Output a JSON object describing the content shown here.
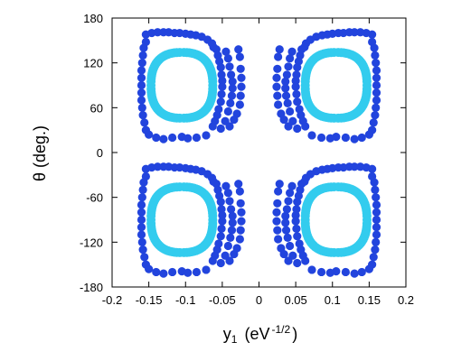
{
  "chart_data": {
    "type": "scatter",
    "xlabel": "y",
    "xlabel_sub": "1",
    "xlabel_unit_open": "(eV",
    "xlabel_unit_exp": "-1/2",
    "xlabel_unit_close": ")",
    "ylabel": "θ (deg.)",
    "xlim": [
      -0.2,
      0.2
    ],
    "ylim": [
      -180,
      180
    ],
    "xticks": [
      -0.2,
      -0.15,
      -0.1,
      -0.05,
      0,
      0.05,
      0.1,
      0.15,
      0.2
    ],
    "xtick_labels": [
      "-0.2",
      "-0.15",
      "-0.1",
      "-0.05",
      "0",
      "0.05",
      "0.1",
      "0.15",
      "0.2"
    ],
    "yticks": [
      -180,
      -120,
      -60,
      0,
      60,
      120,
      180
    ],
    "ytick_labels": [
      "-180",
      "-120",
      "-60",
      "0",
      "60",
      "120",
      "180"
    ],
    "grid": false,
    "legend": false,
    "series": [
      {
        "color": "#2244dd",
        "points": [
          [
            -0.154,
            158
          ],
          [
            -0.146,
            160
          ],
          [
            -0.138,
            161
          ],
          [
            -0.13,
            161
          ],
          [
            -0.123,
            161
          ],
          [
            -0.115,
            160
          ],
          [
            -0.108,
            160
          ],
          [
            -0.1,
            159
          ],
          [
            -0.093,
            158
          ],
          [
            -0.086,
            157
          ],
          [
            -0.078,
            155
          ],
          [
            -0.07,
            151
          ],
          [
            -0.064,
            146
          ],
          [
            -0.154,
            148
          ],
          [
            -0.157,
            140
          ],
          [
            -0.158,
            130
          ],
          [
            -0.159,
            120
          ],
          [
            -0.16,
            110
          ],
          [
            -0.16,
            100
          ],
          [
            -0.16,
            90
          ],
          [
            -0.16,
            80
          ],
          [
            -0.16,
            70
          ],
          [
            -0.159,
            60
          ],
          [
            -0.158,
            50
          ],
          [
            -0.156,
            40
          ],
          [
            -0.154,
            30
          ],
          [
            -0.15,
            24
          ],
          [
            -0.14,
            20
          ],
          [
            -0.13,
            18
          ],
          [
            -0.118,
            20
          ],
          [
            -0.105,
            21
          ],
          [
            -0.097,
            19
          ],
          [
            -0.085,
            20
          ],
          [
            -0.072,
            23
          ],
          [
            -0.062,
            141
          ],
          [
            -0.058,
            138
          ],
          [
            -0.056,
            130
          ],
          [
            -0.054,
            122
          ],
          [
            -0.052,
            114
          ],
          [
            -0.051,
            104
          ],
          [
            -0.05,
            96
          ],
          [
            -0.05,
            88
          ],
          [
            -0.051,
            78
          ],
          [
            -0.052,
            68
          ],
          [
            -0.055,
            58
          ],
          [
            -0.057,
            50
          ],
          [
            -0.06,
            42
          ],
          [
            -0.063,
            35
          ],
          [
            -0.045,
            135
          ],
          [
            -0.042,
            126
          ],
          [
            -0.04,
            115
          ],
          [
            -0.038,
            104
          ],
          [
            -0.036,
            95
          ],
          [
            -0.036,
            86
          ],
          [
            -0.037,
            76
          ],
          [
            -0.039,
            66
          ],
          [
            -0.042,
            55
          ],
          [
            -0.046,
            42
          ],
          [
            -0.052,
            32
          ],
          [
            -0.028,
            138
          ],
          [
            -0.026,
            128
          ],
          [
            -0.025,
            112
          ],
          [
            -0.024,
            100
          ],
          [
            -0.024,
            88
          ],
          [
            -0.025,
            76
          ],
          [
            -0.026,
            64
          ],
          [
            -0.03,
            52
          ],
          [
            -0.034,
            44
          ],
          [
            -0.04,
            35
          ],
          [
            0.154,
            158
          ],
          [
            0.146,
            160
          ],
          [
            0.138,
            161
          ],
          [
            0.13,
            161
          ],
          [
            0.123,
            161
          ],
          [
            0.115,
            160
          ],
          [
            0.108,
            160
          ],
          [
            0.1,
            159
          ],
          [
            0.093,
            158
          ],
          [
            0.086,
            157
          ],
          [
            0.078,
            155
          ],
          [
            0.07,
            151
          ],
          [
            0.064,
            146
          ],
          [
            0.154,
            148
          ],
          [
            0.157,
            140
          ],
          [
            0.158,
            130
          ],
          [
            0.159,
            120
          ],
          [
            0.16,
            110
          ],
          [
            0.16,
            100
          ],
          [
            0.16,
            90
          ],
          [
            0.16,
            80
          ],
          [
            0.16,
            70
          ],
          [
            0.159,
            60
          ],
          [
            0.158,
            50
          ],
          [
            0.156,
            40
          ],
          [
            0.154,
            30
          ],
          [
            0.15,
            24
          ],
          [
            0.14,
            20
          ],
          [
            0.13,
            18
          ],
          [
            0.118,
            20
          ],
          [
            0.105,
            21
          ],
          [
            0.097,
            19
          ],
          [
            0.085,
            20
          ],
          [
            0.072,
            23
          ],
          [
            0.062,
            141
          ],
          [
            0.058,
            138
          ],
          [
            0.056,
            130
          ],
          [
            0.054,
            122
          ],
          [
            0.052,
            114
          ],
          [
            0.051,
            104
          ],
          [
            0.05,
            96
          ],
          [
            0.05,
            88
          ],
          [
            0.051,
            78
          ],
          [
            0.052,
            68
          ],
          [
            0.055,
            58
          ],
          [
            0.057,
            50
          ],
          [
            0.06,
            42
          ],
          [
            0.063,
            35
          ],
          [
            0.045,
            135
          ],
          [
            0.042,
            126
          ],
          [
            0.04,
            115
          ],
          [
            0.038,
            104
          ],
          [
            0.036,
            95
          ],
          [
            0.036,
            86
          ],
          [
            0.037,
            76
          ],
          [
            0.039,
            66
          ],
          [
            0.042,
            55
          ],
          [
            0.046,
            42
          ],
          [
            0.052,
            32
          ],
          [
            0.028,
            138
          ],
          [
            0.026,
            128
          ],
          [
            0.025,
            112
          ],
          [
            0.024,
            100
          ],
          [
            0.024,
            88
          ],
          [
            0.025,
            76
          ],
          [
            0.026,
            64
          ],
          [
            0.03,
            52
          ],
          [
            0.034,
            44
          ],
          [
            0.04,
            35
          ],
          [
            -0.154,
            -22
          ],
          [
            -0.146,
            -20
          ],
          [
            -0.138,
            -19
          ],
          [
            -0.13,
            -19
          ],
          [
            -0.123,
            -19
          ],
          [
            -0.115,
            -20
          ],
          [
            -0.108,
            -20
          ],
          [
            -0.1,
            -21
          ],
          [
            -0.093,
            -22
          ],
          [
            -0.086,
            -23
          ],
          [
            -0.078,
            -25
          ],
          [
            -0.07,
            -29
          ],
          [
            -0.064,
            -34
          ],
          [
            -0.154,
            -32
          ],
          [
            -0.157,
            -40
          ],
          [
            -0.158,
            -50
          ],
          [
            -0.159,
            -60
          ],
          [
            -0.16,
            -70
          ],
          [
            -0.16,
            -80
          ],
          [
            -0.16,
            -90
          ],
          [
            -0.16,
            -100
          ],
          [
            -0.16,
            -110
          ],
          [
            -0.159,
            -120
          ],
          [
            -0.158,
            -130
          ],
          [
            -0.156,
            -140
          ],
          [
            -0.154,
            -150
          ],
          [
            -0.15,
            -156
          ],
          [
            -0.14,
            -160
          ],
          [
            -0.13,
            -162
          ],
          [
            -0.118,
            -160
          ],
          [
            -0.105,
            -159
          ],
          [
            -0.097,
            -161
          ],
          [
            -0.085,
            -160
          ],
          [
            -0.072,
            -157
          ],
          [
            -0.062,
            -39
          ],
          [
            -0.058,
            -42
          ],
          [
            -0.056,
            -50
          ],
          [
            -0.054,
            -58
          ],
          [
            -0.052,
            -66
          ],
          [
            -0.051,
            -76
          ],
          [
            -0.05,
            -84
          ],
          [
            -0.05,
            -92
          ],
          [
            -0.051,
            -102
          ],
          [
            -0.052,
            -112
          ],
          [
            -0.055,
            -122
          ],
          [
            -0.057,
            -130
          ],
          [
            -0.06,
            -138
          ],
          [
            -0.063,
            -145
          ],
          [
            -0.045,
            -45
          ],
          [
            -0.042,
            -54
          ],
          [
            -0.04,
            -65
          ],
          [
            -0.038,
            -76
          ],
          [
            -0.036,
            -85
          ],
          [
            -0.036,
            -94
          ],
          [
            -0.037,
            -104
          ],
          [
            -0.039,
            -114
          ],
          [
            -0.042,
            -125
          ],
          [
            -0.046,
            -138
          ],
          [
            -0.052,
            -148
          ],
          [
            -0.028,
            -42
          ],
          [
            -0.026,
            -52
          ],
          [
            -0.025,
            -68
          ],
          [
            -0.024,
            -80
          ],
          [
            -0.024,
            -92
          ],
          [
            -0.025,
            -104
          ],
          [
            -0.026,
            -116
          ],
          [
            -0.03,
            -128
          ],
          [
            -0.034,
            -136
          ],
          [
            -0.04,
            -145
          ],
          [
            0.154,
            -22
          ],
          [
            0.146,
            -20
          ],
          [
            0.138,
            -19
          ],
          [
            0.13,
            -19
          ],
          [
            0.123,
            -19
          ],
          [
            0.115,
            -20
          ],
          [
            0.108,
            -20
          ],
          [
            0.1,
            -21
          ],
          [
            0.093,
            -22
          ],
          [
            0.086,
            -23
          ],
          [
            0.078,
            -25
          ],
          [
            0.07,
            -29
          ],
          [
            0.064,
            -34
          ],
          [
            0.154,
            -32
          ],
          [
            0.157,
            -40
          ],
          [
            0.158,
            -50
          ],
          [
            0.159,
            -60
          ],
          [
            0.16,
            -70
          ],
          [
            0.16,
            -80
          ],
          [
            0.16,
            -90
          ],
          [
            0.16,
            -100
          ],
          [
            0.16,
            -110
          ],
          [
            0.159,
            -120
          ],
          [
            0.158,
            -130
          ],
          [
            0.156,
            -140
          ],
          [
            0.154,
            -150
          ],
          [
            0.15,
            -156
          ],
          [
            0.14,
            -160
          ],
          [
            0.13,
            -162
          ],
          [
            0.118,
            -160
          ],
          [
            0.105,
            -159
          ],
          [
            0.097,
            -161
          ],
          [
            0.085,
            -160
          ],
          [
            0.072,
            -157
          ],
          [
            0.062,
            -39
          ],
          [
            0.058,
            -42
          ],
          [
            0.056,
            -50
          ],
          [
            0.054,
            -58
          ],
          [
            0.052,
            -66
          ],
          [
            0.051,
            -76
          ],
          [
            0.05,
            -84
          ],
          [
            0.05,
            -92
          ],
          [
            0.051,
            -102
          ],
          [
            0.052,
            -112
          ],
          [
            0.055,
            -122
          ],
          [
            0.057,
            -130
          ],
          [
            0.06,
            -138
          ],
          [
            0.063,
            -145
          ],
          [
            0.045,
            -45
          ],
          [
            0.042,
            -54
          ],
          [
            0.04,
            -65
          ],
          [
            0.038,
            -76
          ],
          [
            0.036,
            -85
          ],
          [
            0.036,
            -94
          ],
          [
            0.037,
            -104
          ],
          [
            0.039,
            -114
          ],
          [
            0.042,
            -125
          ],
          [
            0.046,
            -138
          ],
          [
            0.052,
            -148
          ],
          [
            0.028,
            -42
          ],
          [
            0.026,
            -52
          ],
          [
            0.025,
            -68
          ],
          [
            0.024,
            -80
          ],
          [
            0.024,
            -92
          ],
          [
            0.025,
            -104
          ],
          [
            0.026,
            -116
          ],
          [
            0.03,
            -128
          ],
          [
            0.034,
            -136
          ],
          [
            0.04,
            -145
          ]
        ]
      },
      {
        "color": "#33ccee",
        "loops": [
          {
            "cx": -0.105,
            "cy": 90,
            "rx": 0.042,
            "ry": 44
          },
          {
            "cx": 0.105,
            "cy": 90,
            "rx": 0.042,
            "ry": 44
          },
          {
            "cx": -0.105,
            "cy": -90,
            "rx": 0.042,
            "ry": 44
          },
          {
            "cx": 0.105,
            "cy": -90,
            "rx": 0.042,
            "ry": 44
          }
        ]
      }
    ]
  }
}
